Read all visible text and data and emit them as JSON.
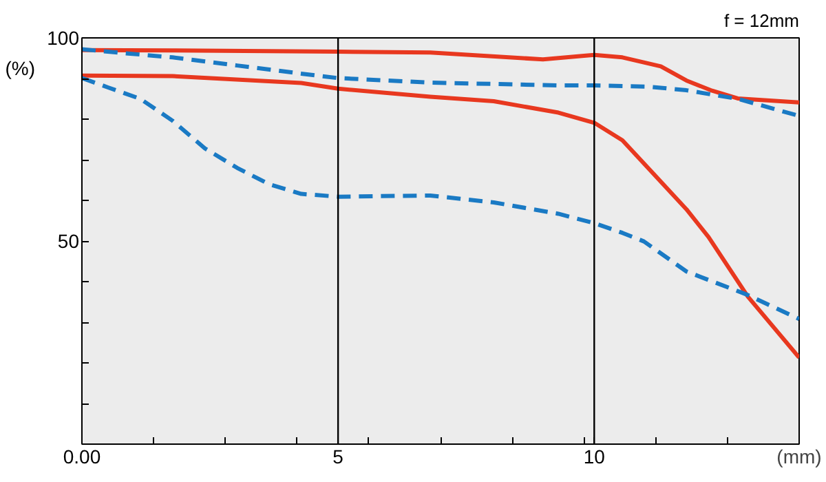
{
  "chart_data": {
    "type": "line",
    "title": "f = 12mm",
    "xlabel": "(mm)",
    "ylabel": "(%)",
    "xlim": [
      0,
      14
    ],
    "ylim": [
      0,
      100
    ],
    "xticks": [
      {
        "value": 0,
        "label": "0.00"
      },
      {
        "value": 1.4,
        "label": null
      },
      {
        "value": 2.8,
        "label": null
      },
      {
        "value": 4.2,
        "label": null
      },
      {
        "value": 5,
        "label": "5"
      },
      {
        "value": 5.6,
        "label": null
      },
      {
        "value": 7,
        "label": null
      },
      {
        "value": 8.4,
        "label": null
      },
      {
        "value": 9.8,
        "label": null
      },
      {
        "value": 10,
        "label": "10"
      },
      {
        "value": 11.2,
        "label": null
      },
      {
        "value": 12.6,
        "label": null
      }
    ],
    "yticks": [
      {
        "value": 10,
        "label": null
      },
      {
        "value": 20,
        "label": null
      },
      {
        "value": 30,
        "label": null
      },
      {
        "value": 40,
        "label": null
      },
      50,
      {
        "value": 60,
        "label": null
      },
      {
        "value": 70,
        "label": null
      },
      {
        "value": 80,
        "label": null
      },
      {
        "value": 90,
        "label": null
      },
      100
    ],
    "ref_lines": [
      {
        "axis": "x",
        "value": 5,
        "label": null,
        "color": "#000000"
      },
      {
        "axis": "x",
        "value": 10,
        "label": null,
        "color": "#000000"
      }
    ],
    "grid": false,
    "marker": "none",
    "series": [
      {
        "color": "#e8381f",
        "line_style": "solid",
        "x": [
          0,
          1.77,
          5,
          6.8,
          9.0,
          9.8,
          10,
          10.55,
          11.3,
          11.8,
          12.3,
          12.8,
          14
        ],
        "values": [
          97,
          96.9,
          96.6,
          96.4,
          94.7,
          95.6,
          95.8,
          95.2,
          93,
          89.5,
          87,
          85.1,
          84.1
        ]
      },
      {
        "color": "#e8381f",
        "line_style": "solid",
        "x": [
          0,
          1.77,
          4.28,
          5,
          6.8,
          8.04,
          9.3,
          10,
          10.55,
          11.8,
          12.23,
          13.0,
          14
        ],
        "values": [
          90.7,
          90.6,
          88.9,
          87.5,
          85.5,
          84.4,
          81.6,
          79.1,
          74.8,
          57.8,
          51,
          36.3,
          21.3
        ]
      },
      {
        "color": "#1a7ac4",
        "line_style": "dashed",
        "x": [
          0,
          0.77,
          1.77,
          3.03,
          4.28,
          5,
          6.8,
          9.3,
          10,
          11.05,
          11.8,
          12.8,
          14
        ],
        "values": [
          97.2,
          96.3,
          95.2,
          93.2,
          91.2,
          90.1,
          89,
          88.3,
          88.3,
          88.0,
          87.1,
          85,
          80.8
        ]
      },
      {
        "color": "#1a7ac4",
        "line_style": "dashed",
        "x": [
          0,
          0.51,
          1.14,
          1.77,
          2.4,
          3.03,
          3.65,
          4.28,
          5,
          6.8,
          8.04,
          9.3,
          10,
          10.55,
          10.97,
          11.8,
          12.98,
          14
        ],
        "values": [
          90.1,
          87.8,
          85,
          79.6,
          72.8,
          68,
          64,
          61.6,
          60.9,
          61.2,
          59.5,
          56.7,
          54.4,
          52,
          49.9,
          42.5,
          36.8,
          30.8
        ]
      }
    ]
  }
}
